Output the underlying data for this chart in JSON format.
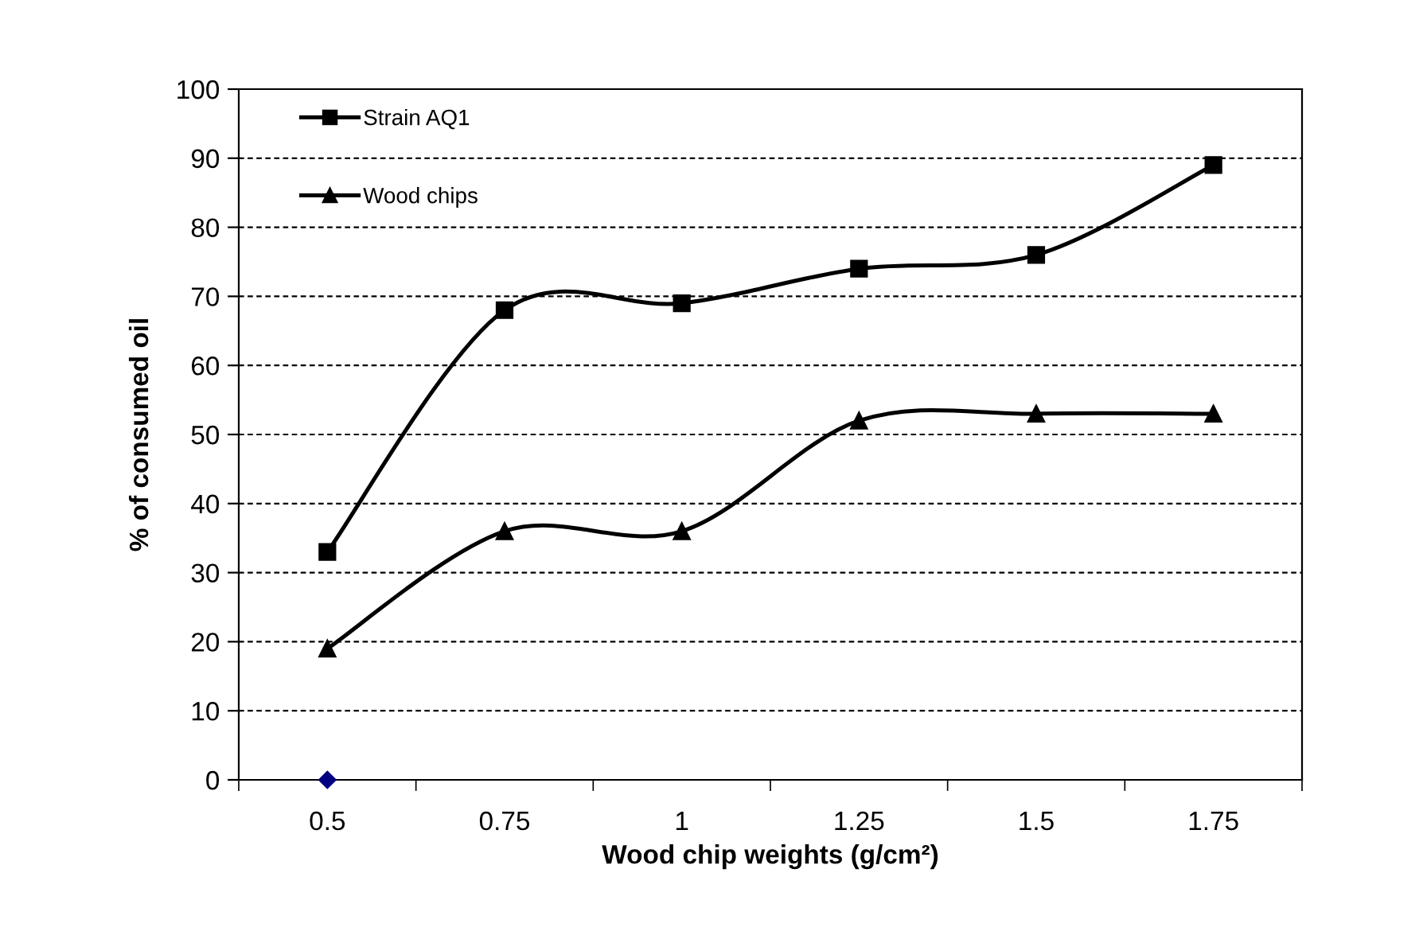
{
  "chart_data": {
    "type": "line",
    "xlabel": "Wood chip weights (g/cm²)",
    "ylabel": "% of consumed oil",
    "categories": [
      "0.5",
      "0.75",
      "1",
      "1.25",
      "1.5",
      "1.75"
    ],
    "series": [
      {
        "name": "Strain AQ1",
        "color": "#000000",
        "marker": "square",
        "values": [
          33,
          68,
          69,
          74,
          76,
          89
        ]
      },
      {
        "name": "Wood chips",
        "color": "#000000",
        "marker": "triangle",
        "values": [
          19,
          36,
          36,
          52,
          53,
          53
        ]
      },
      {
        "type": "scatter",
        "color": "#000080",
        "marker": "diamond",
        "values": [
          0,
          null,
          null,
          null,
          null,
          null
        ]
      }
    ],
    "ylim": [
      0,
      100
    ],
    "yticks": [
      0,
      10,
      20,
      30,
      40,
      50,
      60,
      70,
      80,
      90,
      100
    ],
    "grid": "y",
    "legend": "top left",
    "line_style": "solid"
  }
}
